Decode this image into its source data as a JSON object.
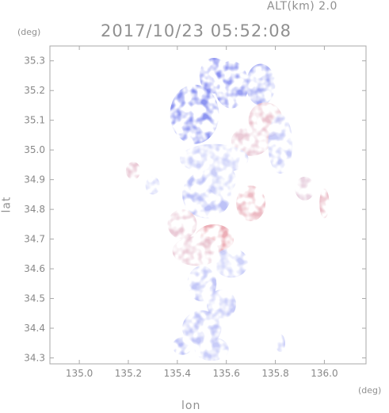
{
  "header": {
    "alt_label": "ALT(km)  2.0",
    "datetime": "2017/10/23 05:52:08"
  },
  "chart_data": {
    "type": "heatmap",
    "title": "2017/10/23 05:52:08",
    "subtitle": "ALT(km)  2.0",
    "xlabel": "lon",
    "ylabel": "lat",
    "x_unit": "(deg)",
    "y_unit": "(deg)",
    "xlim": [
      134.88,
      136.17
    ],
    "ylim": [
      34.28,
      35.35
    ],
    "x_ticks": [
      "135.0",
      "135.2",
      "135.4",
      "135.6",
      "135.8",
      "136.0"
    ],
    "x_tick_values": [
      135.0,
      135.2,
      135.4,
      135.6,
      135.8,
      136.0
    ],
    "y_ticks": [
      "34.3",
      "34.4",
      "34.5",
      "34.6",
      "34.7",
      "34.8",
      "34.9",
      "35.0",
      "35.1",
      "35.2",
      "35.3"
    ],
    "y_tick_values": [
      34.3,
      34.4,
      34.5,
      34.6,
      34.7,
      34.8,
      34.9,
      35.0,
      35.1,
      35.2,
      35.3
    ],
    "grid": false,
    "colors": {
      "negative": "#6f78ee",
      "positive": "#ee6f6f",
      "neutral": "#e6e8fb"
    },
    "regions": [
      {
        "lon": 135.47,
        "lat": 35.12,
        "rx": 0.1,
        "ry": 0.1,
        "v": -0.85
      },
      {
        "lon": 135.62,
        "lat": 35.22,
        "rx": 0.07,
        "ry": 0.08,
        "v": -0.75
      },
      {
        "lon": 135.74,
        "lat": 35.22,
        "rx": 0.06,
        "ry": 0.07,
        "v": -0.6
      },
      {
        "lon": 135.55,
        "lat": 35.25,
        "rx": 0.06,
        "ry": 0.06,
        "v": -0.8
      },
      {
        "lon": 135.76,
        "lat": 35.1,
        "rx": 0.07,
        "ry": 0.06,
        "v": 0.35
      },
      {
        "lon": 135.7,
        "lat": 35.03,
        "rx": 0.08,
        "ry": 0.05,
        "v": 0.3
      },
      {
        "lon": 135.82,
        "lat": 35.02,
        "rx": 0.05,
        "ry": 0.1,
        "v": -0.3
      },
      {
        "lon": 135.55,
        "lat": 34.97,
        "rx": 0.14,
        "ry": 0.05,
        "v": -0.25
      },
      {
        "lon": 135.52,
        "lat": 34.85,
        "rx": 0.1,
        "ry": 0.08,
        "v": -0.4
      },
      {
        "lon": 135.7,
        "lat": 34.82,
        "rx": 0.06,
        "ry": 0.06,
        "v": 0.45
      },
      {
        "lon": 135.58,
        "lat": 34.9,
        "rx": 0.06,
        "ry": 0.05,
        "v": -0.2
      },
      {
        "lon": 135.42,
        "lat": 34.75,
        "rx": 0.06,
        "ry": 0.05,
        "v": 0.3
      },
      {
        "lon": 135.55,
        "lat": 34.7,
        "rx": 0.08,
        "ry": 0.05,
        "v": 0.55
      },
      {
        "lon": 135.48,
        "lat": 34.66,
        "rx": 0.1,
        "ry": 0.05,
        "v": 0.3
      },
      {
        "lon": 135.62,
        "lat": 34.62,
        "rx": 0.07,
        "ry": 0.05,
        "v": -0.25
      },
      {
        "lon": 135.5,
        "lat": 34.55,
        "rx": 0.06,
        "ry": 0.06,
        "v": -0.35
      },
      {
        "lon": 135.58,
        "lat": 34.48,
        "rx": 0.06,
        "ry": 0.05,
        "v": -0.3
      },
      {
        "lon": 135.5,
        "lat": 34.4,
        "rx": 0.08,
        "ry": 0.06,
        "v": -0.35
      },
      {
        "lon": 135.54,
        "lat": 34.33,
        "rx": 0.07,
        "ry": 0.04,
        "v": -0.3
      },
      {
        "lon": 135.42,
        "lat": 34.34,
        "rx": 0.04,
        "ry": 0.03,
        "v": -0.45
      },
      {
        "lon": 135.92,
        "lat": 34.87,
        "rx": 0.04,
        "ry": 0.04,
        "v": 0.2
      },
      {
        "lon": 136.0,
        "lat": 34.82,
        "rx": 0.02,
        "ry": 0.05,
        "v": 0.4
      },
      {
        "lon": 135.3,
        "lat": 34.88,
        "rx": 0.03,
        "ry": 0.03,
        "v": -0.3
      },
      {
        "lon": 135.22,
        "lat": 34.93,
        "rx": 0.03,
        "ry": 0.03,
        "v": 0.3
      },
      {
        "lon": 135.82,
        "lat": 34.35,
        "rx": 0.02,
        "ry": 0.03,
        "v": -0.3
      }
    ]
  }
}
